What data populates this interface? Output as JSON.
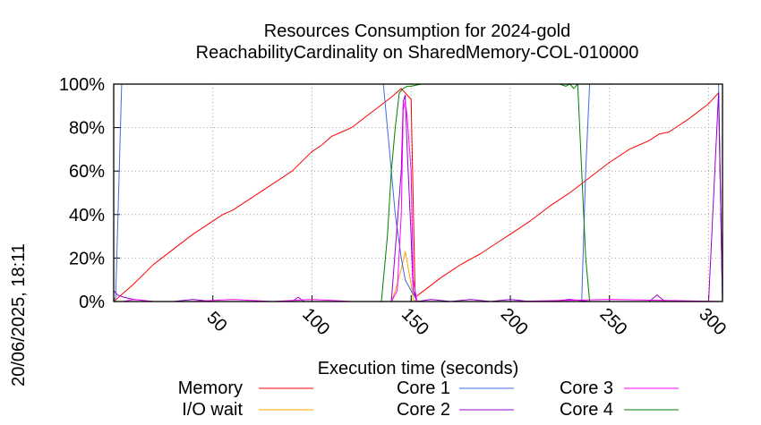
{
  "chart_data": {
    "type": "line",
    "title": "Resources Consumption for 2024-gold",
    "subtitle": "ReachabilityCardinality on SharedMemory-COL-010000",
    "xlabel": "Execution time (seconds)",
    "ylabel": "",
    "side_label": "20/06/2025, 18:11",
    "xlim": [
      0,
      307
    ],
    "ylim": [
      0,
      100
    ],
    "x_ticks": [
      50,
      100,
      150,
      200,
      250,
      300
    ],
    "y_ticks": [
      0,
      20,
      40,
      60,
      80,
      100
    ],
    "y_tick_suffix": "%",
    "grid": true,
    "legend_position": "bottom",
    "series": [
      {
        "name": "Memory",
        "color": "#ff0000",
        "x": [
          0,
          10,
          20,
          30,
          40,
          45,
          50,
          55,
          60,
          70,
          80,
          90,
          100,
          105,
          110,
          115,
          120,
          130,
          140,
          145,
          150,
          152,
          155,
          165,
          175,
          185,
          195,
          200,
          205,
          210,
          220,
          230,
          240,
          250,
          260,
          265,
          270,
          275,
          280,
          290,
          300,
          305,
          307
        ],
        "y": [
          0,
          8,
          17,
          24,
          31,
          34,
          37,
          40,
          42,
          48,
          54,
          60,
          69,
          72,
          76,
          78,
          80,
          87,
          94,
          98,
          93,
          2,
          4,
          11,
          17,
          22,
          28,
          31,
          34,
          37,
          44,
          50,
          57,
          64,
          70,
          72,
          74,
          77,
          78,
          84,
          91,
          96,
          0
        ]
      },
      {
        "name": "I/O wait",
        "color": "#ffa500",
        "x": [
          0,
          135,
          140,
          142,
          145,
          147,
          150,
          151,
          153,
          307
        ],
        "y": [
          0,
          0,
          0,
          5,
          15,
          23,
          8,
          1,
          0,
          0
        ]
      },
      {
        "name": "Core 1",
        "color": "#4169e1",
        "x": [
          0,
          1,
          4,
          5,
          136,
          138,
          140,
          142,
          145,
          147,
          150,
          152,
          153,
          234,
          236,
          238,
          240,
          242,
          304,
          305,
          307
        ],
        "y": [
          0,
          2,
          100,
          100,
          100,
          80,
          60,
          40,
          20,
          10,
          5,
          2,
          0,
          0,
          0,
          60,
          100,
          100,
          100,
          100,
          0
        ]
      },
      {
        "name": "Core 2",
        "color": "#9400d3",
        "x": [
          0,
          2,
          5,
          10,
          20,
          30,
          40,
          50,
          60,
          70,
          80,
          90,
          93,
          96,
          100,
          110,
          120,
          130,
          140,
          145,
          146,
          147,
          148,
          150,
          151,
          153,
          160,
          170,
          180,
          190,
          200,
          210,
          220,
          230,
          240,
          250,
          260,
          270,
          274,
          278,
          285,
          290,
          300,
          305,
          307
        ],
        "y": [
          5,
          3,
          2,
          1,
          0,
          0,
          1,
          0,
          0,
          0,
          0,
          0,
          2,
          0,
          0,
          0,
          0,
          0,
          0,
          60,
          92,
          95,
          70,
          30,
          5,
          0,
          1,
          0,
          1,
          0,
          1,
          0,
          0,
          1,
          0,
          0,
          0,
          0,
          3,
          0,
          0,
          0,
          0,
          96,
          0
        ]
      },
      {
        "name": "Core 3",
        "color": "#ff00ff",
        "x": [
          0,
          5,
          10,
          20,
          40,
          60,
          80,
          100,
          120,
          140,
          143,
          145,
          146,
          147,
          148,
          150,
          151,
          153,
          200,
          250,
          307
        ],
        "y": [
          0,
          0,
          1,
          0,
          0,
          1,
          0,
          1,
          0,
          0,
          5,
          40,
          88,
          92,
          85,
          60,
          10,
          0,
          0,
          1,
          0
        ]
      },
      {
        "name": "Core 4",
        "color": "#008000",
        "x": [
          0,
          135,
          138,
          140,
          142,
          144,
          146,
          148,
          150,
          155,
          160,
          170,
          180,
          190,
          200,
          210,
          220,
          225,
          228,
          230,
          232,
          234,
          236,
          238,
          240,
          307
        ],
        "y": [
          0,
          0,
          30,
          60,
          80,
          96,
          98,
          99,
          99,
          100,
          100,
          100,
          100,
          100,
          100,
          100,
          100,
          100,
          99,
          100,
          98,
          100,
          60,
          20,
          0,
          0
        ]
      }
    ]
  }
}
